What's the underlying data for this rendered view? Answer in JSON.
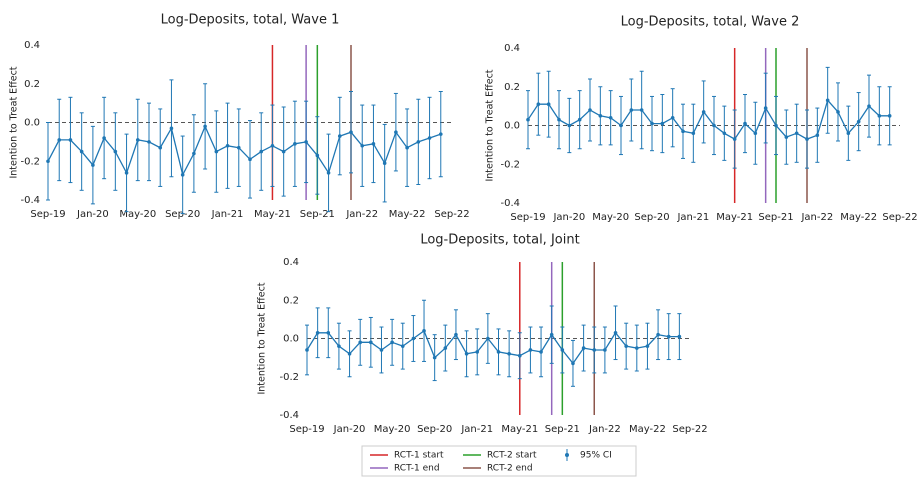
{
  "chart_data": [
    {
      "type": "errorbar",
      "title": "Log-Deposits, total, Wave 1",
      "y_label": "Intention to Treat Effect",
      "categories": [
        "Sep-19",
        null,
        null,
        null,
        "Jan-20",
        null,
        null,
        null,
        "May-20",
        null,
        null,
        null,
        "Sep-20",
        null,
        null,
        null,
        "Jan-21",
        null,
        null,
        null,
        "May-21",
        null,
        null,
        null,
        "Sep-21",
        null,
        null,
        null,
        "Jan-22",
        null,
        null,
        null,
        "May-22",
        null,
        null,
        null,
        "Sep-22"
      ],
      "series": [
        {
          "name": "95% CI",
          "color": "#1f77b4",
          "values": [
            -0.2,
            -0.09,
            -0.09,
            -0.15,
            -0.22,
            -0.08,
            -0.15,
            -0.26,
            -0.09,
            -0.1,
            -0.13,
            -0.03,
            -0.27,
            -0.16,
            -0.02,
            -0.15,
            -0.12,
            -0.13,
            -0.19,
            -0.15,
            -0.12,
            -0.15,
            -0.11,
            -0.1,
            -0.17,
            -0.26,
            -0.07,
            -0.05,
            -0.12,
            -0.11,
            -0.21,
            -0.05,
            -0.13,
            -0.1,
            -0.08,
            -0.06,
            null
          ],
          "errors": [
            0.2,
            0.21,
            0.22,
            0.2,
            0.2,
            0.21,
            0.2,
            0.2,
            0.21,
            0.2,
            0.2,
            0.25,
            0.2,
            0.2,
            0.22,
            0.21,
            0.22,
            0.2,
            0.2,
            0.2,
            0.21,
            0.23,
            0.22,
            0.21,
            0.2,
            0.2,
            0.2,
            0.21,
            0.21,
            0.2,
            0.2,
            0.2,
            0.2,
            0.22,
            0.21,
            0.22,
            null
          ]
        }
      ],
      "ylim": [
        -0.4,
        0.4
      ],
      "yticks": [
        -0.4,
        -0.2,
        {
          "value": 0,
          "label": "0.0"
        },
        0.2,
        0.4
      ],
      "reference_line": 0
    },
    {
      "type": "errorbar",
      "title": "Log-Deposits, total, Wave 2",
      "y_label": "Intention to Treat Effect",
      "categories": [
        "Sep-19",
        null,
        null,
        null,
        "Jan-20",
        null,
        null,
        null,
        "May-20",
        null,
        null,
        null,
        "Sep-20",
        null,
        null,
        null,
        "Jan-21",
        null,
        null,
        null,
        "May-21",
        null,
        null,
        null,
        "Sep-21",
        null,
        null,
        null,
        "Jan-22",
        null,
        null,
        null,
        "May-22",
        null,
        null,
        null,
        "Sep-22"
      ],
      "series": [
        {
          "name": "95% CI",
          "color": "#1f77b4",
          "values": [
            0.03,
            0.11,
            0.11,
            0.03,
            0.0,
            0.03,
            0.08,
            0.05,
            0.04,
            0.0,
            0.08,
            0.08,
            0.01,
            0.01,
            0.04,
            -0.03,
            -0.04,
            0.07,
            0.0,
            -0.04,
            -0.07,
            0.01,
            -0.04,
            0.09,
            0.0,
            -0.06,
            -0.04,
            -0.07,
            -0.05,
            0.13,
            0.07,
            -0.04,
            0.02,
            0.1,
            0.05,
            0.05,
            null
          ],
          "errors": [
            0.15,
            0.16,
            0.17,
            0.15,
            0.14,
            0.15,
            0.16,
            0.15,
            0.14,
            0.15,
            0.16,
            0.2,
            0.14,
            0.15,
            0.15,
            0.14,
            0.15,
            0.16,
            0.15,
            0.14,
            0.15,
            0.15,
            0.16,
            0.18,
            0.15,
            0.14,
            0.15,
            0.15,
            0.14,
            0.17,
            0.15,
            0.14,
            0.15,
            0.16,
            0.15,
            0.15,
            null
          ]
        }
      ],
      "ylim": [
        -0.4,
        0.4
      ],
      "yticks": [
        -0.4,
        -0.2,
        {
          "value": 0,
          "label": "0.0"
        },
        0.2,
        0.4
      ],
      "reference_line": 0
    },
    {
      "type": "errorbar",
      "title": "Log-Deposits, total, Joint",
      "y_label": "Intention to Treat Effect",
      "categories": [
        "Sep-19",
        null,
        null,
        null,
        "Jan-20",
        null,
        null,
        null,
        "May-20",
        null,
        null,
        null,
        "Sep-20",
        null,
        null,
        null,
        "Jan-21",
        null,
        null,
        null,
        "May-21",
        null,
        null,
        null,
        "Sep-21",
        null,
        null,
        null,
        "Jan-22",
        null,
        null,
        null,
        "May-22",
        null,
        null,
        null,
        "Sep-22"
      ],
      "series": [
        {
          "name": "95% CI",
          "color": "#1f77b4",
          "values": [
            -0.06,
            0.03,
            0.03,
            -0.04,
            -0.08,
            -0.02,
            -0.02,
            -0.06,
            -0.02,
            -0.04,
            0.0,
            0.04,
            -0.1,
            -0.05,
            0.02,
            -0.08,
            -0.07,
            0.0,
            -0.07,
            -0.08,
            -0.09,
            -0.06,
            -0.07,
            0.02,
            -0.06,
            -0.13,
            -0.05,
            -0.06,
            -0.06,
            0.03,
            -0.04,
            -0.05,
            -0.04,
            0.02,
            0.01,
            0.01,
            null
          ],
          "errors": [
            0.13,
            0.13,
            0.13,
            0.12,
            0.12,
            0.12,
            0.13,
            0.12,
            0.12,
            0.12,
            0.12,
            0.16,
            0.12,
            0.12,
            0.13,
            0.12,
            0.12,
            0.13,
            0.12,
            0.12,
            0.12,
            0.12,
            0.13,
            0.15,
            0.12,
            0.12,
            0.12,
            0.12,
            0.12,
            0.14,
            0.12,
            0.12,
            0.12,
            0.13,
            0.12,
            0.12,
            null
          ]
        }
      ],
      "ylim": [
        -0.4,
        0.4
      ],
      "yticks": [
        -0.4,
        -0.2,
        {
          "value": 0,
          "label": "0.0"
        },
        0.2,
        0.4
      ],
      "reference_line": 0
    }
  ],
  "events": [
    {
      "name": "RCT-1 start",
      "color": "#d62728",
      "x": 20
    },
    {
      "name": "RCT-1 end",
      "color": "#9467bd",
      "x": 23
    },
    {
      "name": "RCT-2 start",
      "color": "#2ca02c",
      "x": 24
    },
    {
      "name": "RCT-2 end",
      "color": "#8c564b",
      "x": 27
    }
  ]
}
